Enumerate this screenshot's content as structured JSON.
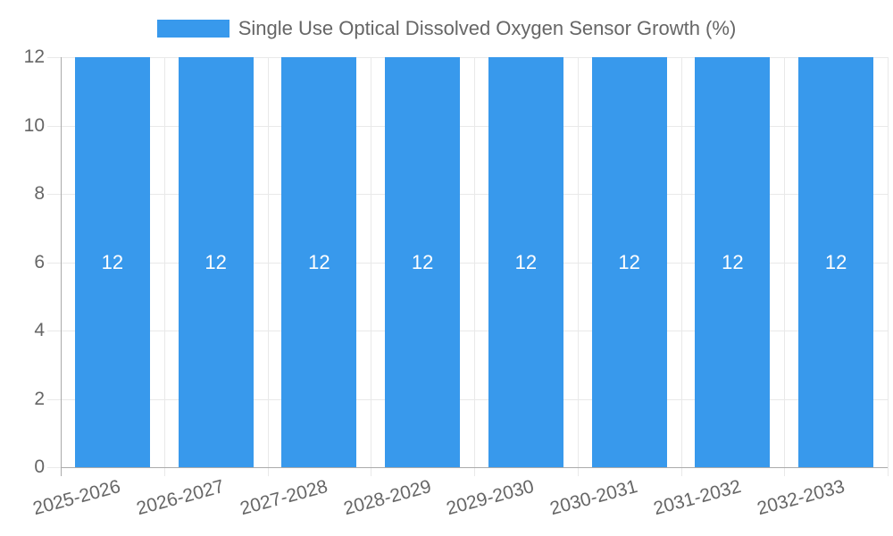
{
  "chart_data": {
    "type": "bar",
    "title": "Single Use Optical Dissolved Oxygen Sensor Growth (%)",
    "categories": [
      "2025-2026",
      "2026-2027",
      "2027-2028",
      "2028-2029",
      "2029-2030",
      "2030-2031",
      "2031-2032",
      "2032-2033"
    ],
    "values": [
      12,
      12,
      12,
      12,
      12,
      12,
      12,
      12
    ],
    "bar_value_labels": [
      "12",
      "12",
      "12",
      "12",
      "12",
      "12",
      "12",
      "12"
    ],
    "xlabel": "",
    "ylabel": "",
    "ylim": [
      0,
      12
    ],
    "yticks": [
      0,
      2,
      4,
      6,
      8,
      10,
      12
    ],
    "grid": true,
    "legend_position": "top",
    "x_label_rotation_deg": -15,
    "colors": {
      "bar": "#3899ec",
      "grid": "#e9e9e9",
      "axis": "#ababab",
      "text": "#666666",
      "bar_label": "#ffffff",
      "background": "#ffffff"
    }
  }
}
